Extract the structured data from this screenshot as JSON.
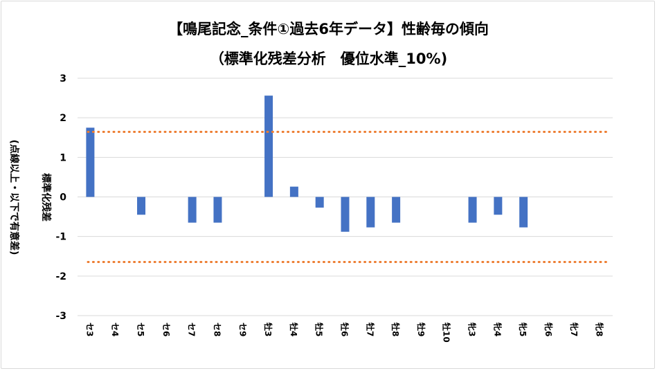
{
  "chart_data": {
    "type": "bar",
    "title": "【鳴尾記念_条件①過去6年データ】性齢毎の傾向",
    "subtitle": "（標準化残差分析　優位水準_10%)",
    "ylabel_line1": "標準化残差",
    "ylabel_line2": "(点線以上・以下で有意差)",
    "ylim": [
      -3,
      3
    ],
    "yticks": [
      3,
      2,
      1,
      0,
      -1,
      -2,
      -3
    ],
    "categories": [
      "セ3",
      "セ4",
      "セ5",
      "セ6",
      "セ7",
      "セ8",
      "セ9",
      "牡3",
      "牡4",
      "牡5",
      "牡6",
      "牡7",
      "牡8",
      "牡9",
      "牡10",
      "牝3",
      "牝4",
      "牝5",
      "牝6",
      "牝7",
      "牝8"
    ],
    "values": [
      1.75,
      0,
      -0.45,
      0,
      -0.65,
      -0.65,
      0,
      2.56,
      0.26,
      -0.27,
      -0.88,
      -0.77,
      -0.65,
      0,
      0,
      -0.65,
      -0.45,
      -0.77,
      0,
      0,
      0
    ],
    "thresholds": [
      1.645,
      -1.645
    ],
    "bar_color": "#4472c4",
    "threshold_color": "#ed7d31",
    "grid": true
  }
}
